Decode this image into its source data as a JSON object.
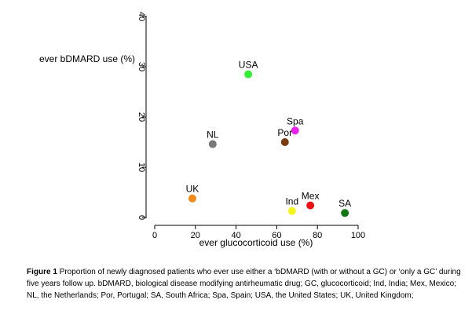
{
  "chart_data": {
    "type": "scatter",
    "xlabel": "ever glucocorticoid use (%)",
    "ylabel": "ever bDMARD use (%)",
    "xlim": [
      0,
      100
    ],
    "ylim": [
      0,
      40
    ],
    "xticks": [
      0,
      20,
      40,
      60,
      80,
      100
    ],
    "yticks": [
      0,
      10,
      20,
      30,
      40
    ],
    "grid": false,
    "points": [
      {
        "label": "USA",
        "x": 46,
        "y": 28.5,
        "color": "#33ee33"
      },
      {
        "label": "Spa",
        "x": 69,
        "y": 17.3,
        "color": "#ee22ee"
      },
      {
        "label": "Por",
        "x": 64,
        "y": 15,
        "color": "#7a3a10"
      },
      {
        "label": "NL",
        "x": 28.5,
        "y": 14.6,
        "color": "#777777"
      },
      {
        "label": "UK",
        "x": 18.5,
        "y": 3.8,
        "color": "#f08a1a"
      },
      {
        "label": "Ind",
        "x": 67.5,
        "y": 1.3,
        "color": "#f5f51a"
      },
      {
        "label": "Mex",
        "x": 76.5,
        "y": 2.4,
        "color": "#ee1111"
      },
      {
        "label": "SA",
        "x": 93.5,
        "y": 0.9,
        "color": "#117711"
      }
    ]
  },
  "caption": {
    "bold": "Figure 1",
    "text": " Proportion of newly diagnosed patients who ever use either a ‘bDMARD (with or without a GC) or ‘only a GC’  during five years follow up. bDMARD, biological disease modifying antirheumatic drug; GC, glucocorticoid; Ind, India; Mex, Mexico; NL, the Netherlands; Por, Portugal; SA, South Africa; Spa, Spain; USA, the United States; UK, United Kingdom;"
  }
}
